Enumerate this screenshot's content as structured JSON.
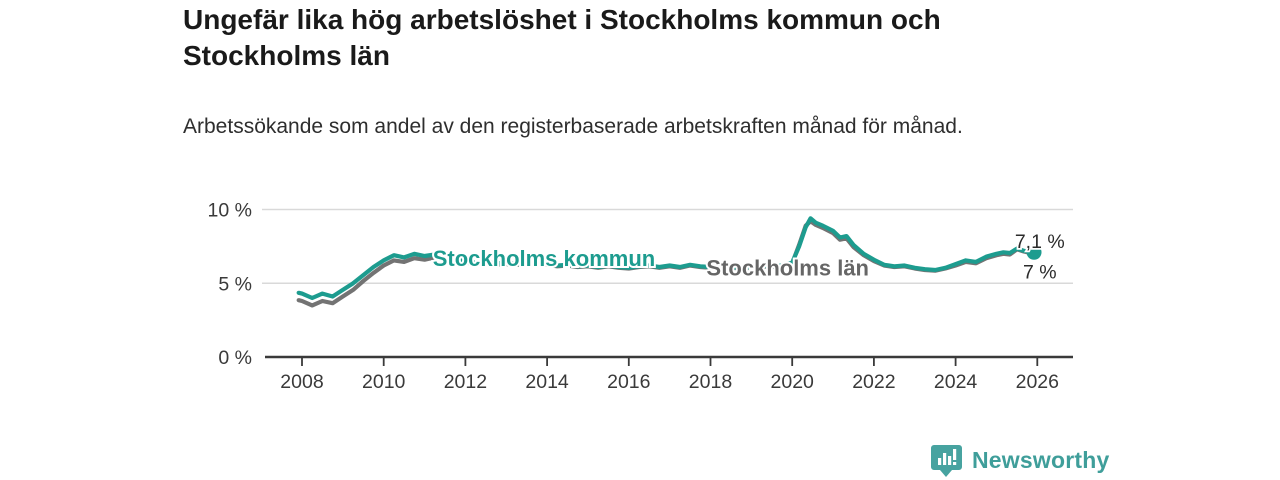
{
  "header": {
    "title": "Ungefär lika hög arbetslöshet i Stockholms kommun och Stockholms län",
    "subtitle": "Arbetssökande som andel av den registerbaserade arbetskraften månad för månad."
  },
  "footer": {
    "brand": "Newsworthy",
    "logo_icon": "speech-bubble-bar-chart-icon"
  },
  "colors": {
    "kommun_teal": "#1d9c8f",
    "lan_gray": "#737373",
    "lan_label_gray": "#666666",
    "grid": "#d9d9d9",
    "axis": "#3a3a3a",
    "tick_text": "#3a3a3a",
    "value_text": "#2b2b2b",
    "brand_badge": "#47a3a0",
    "brand_text": "#3f9e9a",
    "background": "#ffffff"
  },
  "chart_data": {
    "type": "line",
    "title": "Ungefär lika hög arbetslöshet i Stockholms kommun och Stockholms län",
    "xlabel": "",
    "ylabel": "",
    "grid": "horizontal",
    "legend_position": "inline-labels",
    "xlim": [
      2007.4,
      2026.9
    ],
    "ylim": [
      0,
      11
    ],
    "x_ticks": [
      2008,
      2010,
      2012,
      2014,
      2016,
      2018,
      2020,
      2022,
      2024,
      2026
    ],
    "y_ticks": [
      {
        "value": 0,
        "label": "0 %"
      },
      {
        "value": 5,
        "label": "5 %"
      },
      {
        "value": 10,
        "label": "10 %"
      }
    ],
    "series": [
      {
        "name": "Stockholms län",
        "color": "#737373",
        "label_color": "#666666",
        "inline_label": "Stockholms län",
        "inline_label_pos": {
          "x": 2017.9,
          "y": 6.0
        },
        "end_label": "7 %",
        "end_dot": false,
        "points": [
          [
            2007.92,
            3.85
          ],
          [
            2008.0,
            3.8
          ],
          [
            2008.25,
            3.5
          ],
          [
            2008.5,
            3.8
          ],
          [
            2008.75,
            3.65
          ],
          [
            2009.0,
            4.1
          ],
          [
            2009.25,
            4.55
          ],
          [
            2009.5,
            5.15
          ],
          [
            2009.75,
            5.7
          ],
          [
            2010.0,
            6.2
          ],
          [
            2010.25,
            6.55
          ],
          [
            2010.5,
            6.45
          ],
          [
            2010.75,
            6.7
          ],
          [
            2011.0,
            6.6
          ],
          [
            2011.25,
            6.75
          ],
          [
            2011.5,
            6.6
          ],
          [
            2011.75,
            6.45
          ],
          [
            2012.0,
            6.4
          ],
          [
            2012.25,
            6.3
          ],
          [
            2012.5,
            6.35
          ],
          [
            2012.75,
            6.25
          ],
          [
            2013.0,
            6.3
          ],
          [
            2013.25,
            6.25
          ],
          [
            2013.5,
            6.3
          ],
          [
            2013.75,
            6.2
          ],
          [
            2014.0,
            6.25
          ],
          [
            2014.25,
            6.15
          ],
          [
            2014.5,
            6.2
          ],
          [
            2014.75,
            6.1
          ],
          [
            2015.0,
            6.15
          ],
          [
            2015.25,
            6.05
          ],
          [
            2015.5,
            6.15
          ],
          [
            2015.75,
            6.05
          ],
          [
            2016.0,
            6.0
          ],
          [
            2016.25,
            6.1
          ],
          [
            2016.5,
            6.15
          ],
          [
            2016.75,
            6.05
          ],
          [
            2017.0,
            6.15
          ],
          [
            2017.25,
            6.05
          ],
          [
            2017.5,
            6.2
          ],
          [
            2017.75,
            6.1
          ],
          [
            2018.0,
            6.05
          ],
          [
            2018.25,
            6.15
          ],
          [
            2018.5,
            6.05
          ],
          [
            2018.75,
            6.0
          ],
          [
            2019.0,
            6.05
          ],
          [
            2019.25,
            6.15
          ],
          [
            2019.5,
            6.1
          ],
          [
            2019.75,
            6.15
          ],
          [
            2020.0,
            6.35
          ],
          [
            2020.17,
            7.6
          ],
          [
            2020.33,
            8.9
          ],
          [
            2020.45,
            9.2
          ],
          [
            2020.58,
            8.95
          ],
          [
            2020.75,
            8.75
          ],
          [
            2021.0,
            8.4
          ],
          [
            2021.17,
            7.95
          ],
          [
            2021.33,
            8.05
          ],
          [
            2021.5,
            7.45
          ],
          [
            2021.75,
            6.9
          ],
          [
            2022.0,
            6.5
          ],
          [
            2022.25,
            6.2
          ],
          [
            2022.5,
            6.1
          ],
          [
            2022.75,
            6.15
          ],
          [
            2023.0,
            6.0
          ],
          [
            2023.25,
            5.9
          ],
          [
            2023.5,
            5.85
          ],
          [
            2023.75,
            6.0
          ],
          [
            2024.0,
            6.2
          ],
          [
            2024.25,
            6.45
          ],
          [
            2024.5,
            6.35
          ],
          [
            2024.75,
            6.7
          ],
          [
            2025.0,
            6.9
          ],
          [
            2025.17,
            7.0
          ],
          [
            2025.33,
            6.95
          ],
          [
            2025.5,
            7.3
          ],
          [
            2025.67,
            7.15
          ],
          [
            2025.92,
            7.0
          ]
        ]
      },
      {
        "name": "Stockholms kommun",
        "color": "#1d9c8f",
        "label_color": "#1d9c8f",
        "inline_label": "Stockholms kommun",
        "inline_label_pos": {
          "x": 2011.2,
          "y": 6.65
        },
        "end_label": "7,1 %",
        "end_dot": true,
        "points": [
          [
            2007.92,
            4.35
          ],
          [
            2008.0,
            4.3
          ],
          [
            2008.25,
            4.0
          ],
          [
            2008.5,
            4.3
          ],
          [
            2008.75,
            4.1
          ],
          [
            2009.0,
            4.55
          ],
          [
            2009.25,
            5.0
          ],
          [
            2009.5,
            5.55
          ],
          [
            2009.75,
            6.1
          ],
          [
            2010.0,
            6.55
          ],
          [
            2010.25,
            6.9
          ],
          [
            2010.5,
            6.75
          ],
          [
            2010.75,
            7.0
          ],
          [
            2011.0,
            6.85
          ],
          [
            2011.25,
            6.95
          ],
          [
            2011.5,
            6.8
          ],
          [
            2011.75,
            6.6
          ],
          [
            2012.0,
            6.5
          ],
          [
            2012.25,
            6.4
          ],
          [
            2012.5,
            6.45
          ],
          [
            2012.75,
            6.35
          ],
          [
            2013.0,
            6.4
          ],
          [
            2013.25,
            6.3
          ],
          [
            2013.5,
            6.35
          ],
          [
            2013.75,
            6.25
          ],
          [
            2014.0,
            6.3
          ],
          [
            2014.25,
            6.2
          ],
          [
            2014.5,
            6.25
          ],
          [
            2014.75,
            6.15
          ],
          [
            2015.0,
            6.2
          ],
          [
            2015.25,
            6.1
          ],
          [
            2015.5,
            6.2
          ],
          [
            2015.75,
            6.1
          ],
          [
            2016.0,
            6.05
          ],
          [
            2016.25,
            6.15
          ],
          [
            2016.5,
            6.2
          ],
          [
            2016.75,
            6.1
          ],
          [
            2017.0,
            6.2
          ],
          [
            2017.25,
            6.1
          ],
          [
            2017.5,
            6.25
          ],
          [
            2017.75,
            6.15
          ],
          [
            2018.0,
            6.1
          ],
          [
            2018.25,
            6.2
          ],
          [
            2018.5,
            6.1
          ],
          [
            2018.75,
            6.05
          ],
          [
            2019.0,
            6.1
          ],
          [
            2019.25,
            6.2
          ],
          [
            2019.5,
            6.15
          ],
          [
            2019.75,
            6.2
          ],
          [
            2020.0,
            6.4
          ],
          [
            2020.17,
            7.5
          ],
          [
            2020.33,
            8.8
          ],
          [
            2020.45,
            9.4
          ],
          [
            2020.58,
            9.1
          ],
          [
            2020.75,
            8.9
          ],
          [
            2021.0,
            8.55
          ],
          [
            2021.17,
            8.1
          ],
          [
            2021.33,
            8.2
          ],
          [
            2021.5,
            7.6
          ],
          [
            2021.75,
            7.0
          ],
          [
            2022.0,
            6.6
          ],
          [
            2022.25,
            6.25
          ],
          [
            2022.5,
            6.15
          ],
          [
            2022.75,
            6.2
          ],
          [
            2023.0,
            6.05
          ],
          [
            2023.25,
            5.95
          ],
          [
            2023.5,
            5.9
          ],
          [
            2023.75,
            6.05
          ],
          [
            2024.0,
            6.3
          ],
          [
            2024.25,
            6.55
          ],
          [
            2024.5,
            6.45
          ],
          [
            2024.75,
            6.8
          ],
          [
            2025.0,
            7.0
          ],
          [
            2025.17,
            7.1
          ],
          [
            2025.33,
            7.05
          ],
          [
            2025.5,
            7.35
          ],
          [
            2025.67,
            7.2
          ],
          [
            2025.92,
            7.1
          ]
        ]
      }
    ],
    "end_value_labels": [
      {
        "text": "7,1 %",
        "x": 2025.45,
        "y": 7.85
      },
      {
        "text": "7 %",
        "x": 2025.65,
        "y": 5.8
      }
    ]
  }
}
